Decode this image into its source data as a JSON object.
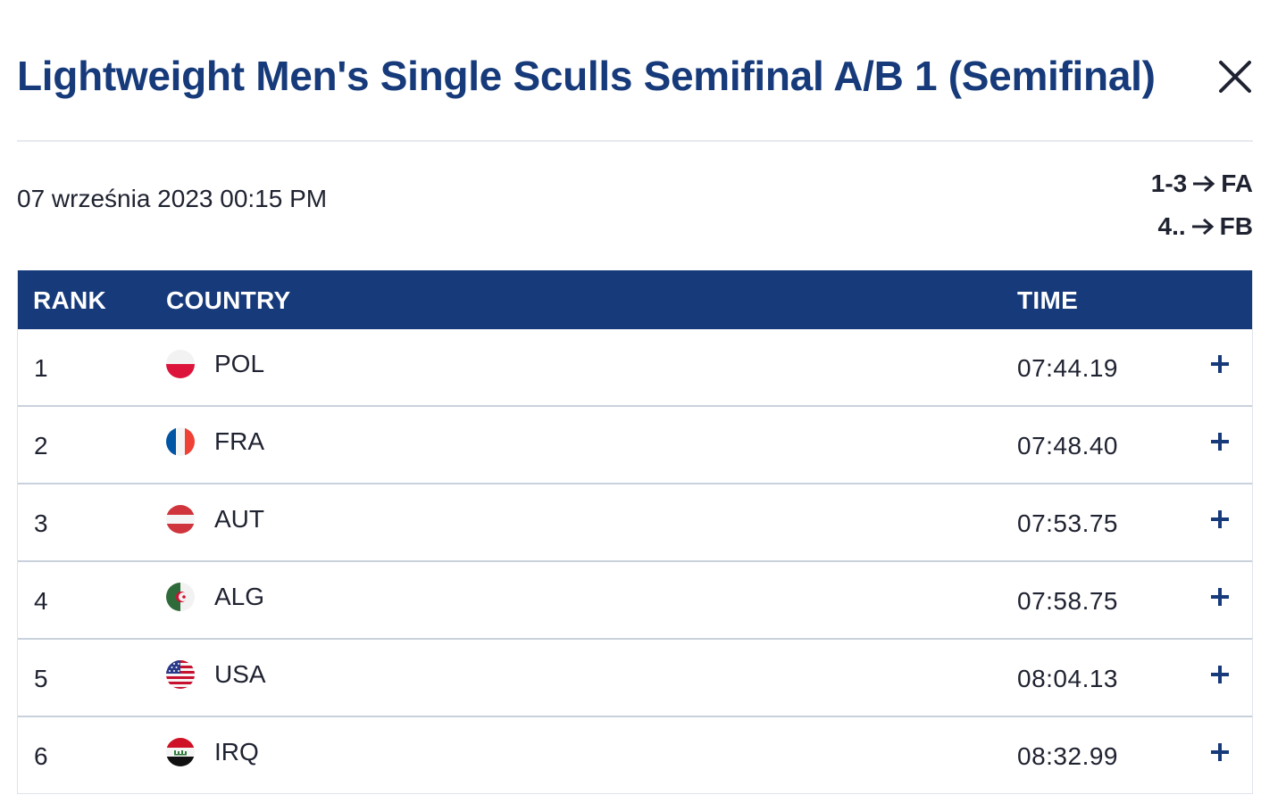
{
  "header": {
    "title": "Lightweight Men's Single Sculls Semifinal A/B 1 (Semifinal)",
    "close_icon": "close-icon"
  },
  "race": {
    "date": "07 września 2023 00:15 PM"
  },
  "progression": [
    {
      "ranks": "1-3",
      "final": "FA"
    },
    {
      "ranks": "4..",
      "final": "FB"
    }
  ],
  "table": {
    "headers": {
      "rank": "RANK",
      "country": "COUNTRY",
      "time": "TIME"
    },
    "rows": [
      {
        "rank": "1",
        "country": "POL",
        "flag": "poland-flag-icon",
        "time": "07:44.19"
      },
      {
        "rank": "2",
        "country": "FRA",
        "flag": "france-flag-icon",
        "time": "07:48.40"
      },
      {
        "rank": "3",
        "country": "AUT",
        "flag": "austria-flag-icon",
        "time": "07:53.75"
      },
      {
        "rank": "4",
        "country": "ALG",
        "flag": "algeria-flag-icon",
        "time": "07:58.75"
      },
      {
        "rank": "5",
        "country": "USA",
        "flag": "usa-flag-icon",
        "time": "08:04.13"
      },
      {
        "rank": "6",
        "country": "IRQ",
        "flag": "iraq-flag-icon",
        "time": "08:32.99"
      }
    ]
  },
  "colors": {
    "brand_navy": "#163a7a",
    "text_dark": "#1f2230",
    "row_border": "#c9d1dd"
  }
}
